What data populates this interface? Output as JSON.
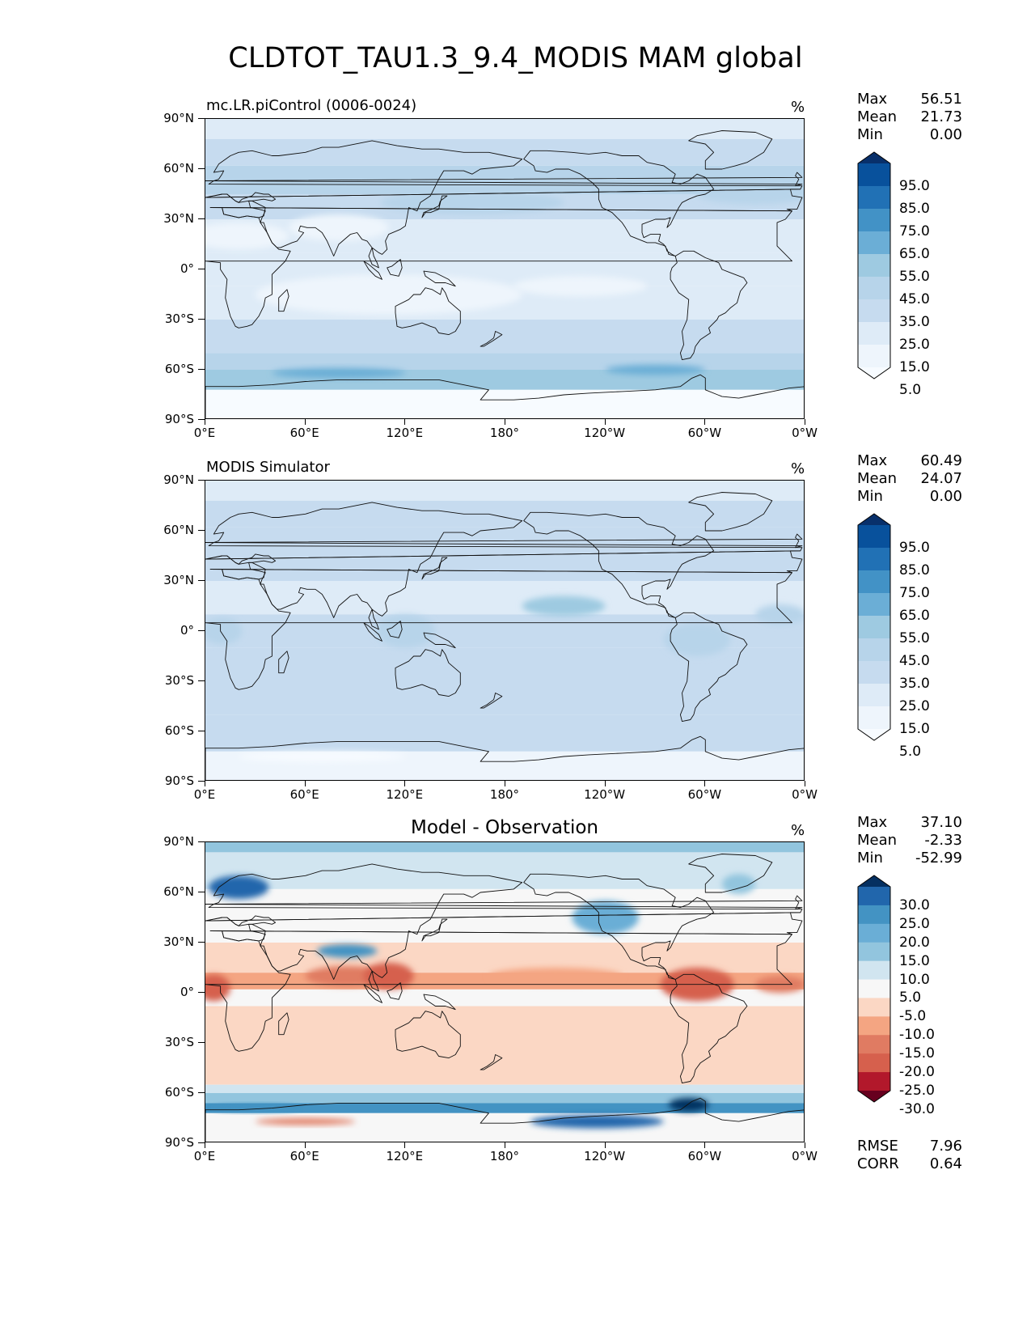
{
  "title": "CLDTOT_TAU1.3_9.4_MODIS MAM global",
  "axes": {
    "yticks": [
      "90°N",
      "60°N",
      "30°N",
      "0°",
      "30°S",
      "60°S",
      "90°S"
    ],
    "xticks": [
      "0°E",
      "60°E",
      "120°E",
      "180°",
      "120°W",
      "60°W",
      "0°W"
    ]
  },
  "panels": [
    {
      "id": "model",
      "subtitle": "mc.LR.piControl (0006-0024)",
      "center_title": "",
      "units": "%",
      "stats": [
        {
          "label": "Max",
          "value": "56.51"
        },
        {
          "label": "Mean",
          "value": "21.73"
        },
        {
          "label": "Min",
          "value": "0.00"
        }
      ],
      "colorbar_labels": [
        "95.0",
        "85.0",
        "75.0",
        "65.0",
        "55.0",
        "45.0",
        "35.0",
        "25.0",
        "15.0",
        "5.0"
      ],
      "colorbar_colors": [
        "#08306b",
        "#08519c",
        "#2171b5",
        "#4292c6",
        "#6baed6",
        "#9ecae1",
        "#b7d4ea",
        "#c6dbef",
        "#deebf7",
        "#eef5fc",
        "#f7fbff"
      ],
      "metrics": []
    },
    {
      "id": "obs",
      "subtitle": "MODIS Simulator",
      "center_title": "",
      "units": "%",
      "stats": [
        {
          "label": "Max",
          "value": "60.49"
        },
        {
          "label": "Mean",
          "value": "24.07"
        },
        {
          "label": "Min",
          "value": "0.00"
        }
      ],
      "colorbar_labels": [
        "95.0",
        "85.0",
        "75.0",
        "65.0",
        "55.0",
        "45.0",
        "35.0",
        "25.0",
        "15.0",
        "5.0"
      ],
      "colorbar_colors": [
        "#08306b",
        "#08519c",
        "#2171b5",
        "#4292c6",
        "#6baed6",
        "#9ecae1",
        "#b7d4ea",
        "#c6dbef",
        "#deebf7",
        "#eef5fc",
        "#f7fbff"
      ],
      "metrics": []
    },
    {
      "id": "diff",
      "subtitle": "",
      "center_title": "Model - Observation",
      "units": "%",
      "stats": [
        {
          "label": "Max",
          "value": "37.10"
        },
        {
          "label": "Mean",
          "value": "-2.33"
        },
        {
          "label": "Min",
          "value": "-52.99"
        }
      ],
      "colorbar_labels": [
        "30.0",
        "25.0",
        "20.0",
        "15.0",
        "10.0",
        "5.0",
        "-5.0",
        "-10.0",
        "-15.0",
        "-20.0",
        "-25.0",
        "-30.0"
      ],
      "colorbar_colors": [
        "#053061",
        "#2166ac",
        "#4393c3",
        "#6aaed6",
        "#92c5de",
        "#d1e5f0",
        "#f7f7f7",
        "#fbd7c4",
        "#f4a582",
        "#e07b62",
        "#d6604d",
        "#b2182b",
        "#67001f"
      ],
      "metrics": [
        {
          "label": "RMSE",
          "value": "7.96"
        },
        {
          "label": "CORR",
          "value": "0.64"
        }
      ]
    }
  ],
  "chart_data": [
    {
      "type": "heatmap",
      "title": "mc.LR.piControl (0006-0024)",
      "units": "%",
      "xlim": [
        0,
        360
      ],
      "ylim": [
        -90,
        90
      ],
      "levels": [
        5,
        15,
        25,
        35,
        45,
        55,
        65,
        75,
        85,
        95
      ],
      "max": 56.51,
      "mean": 21.73,
      "min": 0.0,
      "zonal_bands": [
        {
          "lat": [
            60,
            90
          ],
          "value": 25
        },
        {
          "lat": [
            30,
            60
          ],
          "value": 30
        },
        {
          "lat": [
            0,
            30
          ],
          "value": 18
        },
        {
          "lat": [
            -30,
            0
          ],
          "value": 18
        },
        {
          "lat": [
            -60,
            -30
          ],
          "value": 30
        },
        {
          "lat": [
            -72,
            -60
          ],
          "value": 42
        },
        {
          "lat": [
            -90,
            -72
          ],
          "value": 5
        }
      ]
    },
    {
      "type": "heatmap",
      "title": "MODIS Simulator",
      "units": "%",
      "xlim": [
        0,
        360
      ],
      "ylim": [
        -90,
        90
      ],
      "levels": [
        5,
        15,
        25,
        35,
        45,
        55,
        65,
        75,
        85,
        95
      ],
      "max": 60.49,
      "mean": 24.07,
      "min": 0.0,
      "zonal_bands": [
        {
          "lat": [
            60,
            90
          ],
          "value": 25
        },
        {
          "lat": [
            30,
            60
          ],
          "value": 28
        },
        {
          "lat": [
            0,
            30
          ],
          "value": 22
        },
        {
          "lat": [
            -30,
            0
          ],
          "value": 24
        },
        {
          "lat": [
            -60,
            -30
          ],
          "value": 30
        },
        {
          "lat": [
            -72,
            -60
          ],
          "value": 30
        },
        {
          "lat": [
            -90,
            -72
          ],
          "value": 10
        }
      ]
    },
    {
      "type": "heatmap",
      "title": "Model - Observation",
      "units": "%",
      "xlim": [
        0,
        360
      ],
      "ylim": [
        -90,
        90
      ],
      "levels": [
        -30,
        -25,
        -20,
        -15,
        -10,
        -5,
        5,
        10,
        15,
        20,
        25,
        30
      ],
      "max": 37.1,
      "mean": -2.33,
      "min": -52.99,
      "rmse": 7.96,
      "corr": 0.64,
      "zonal_bands": [
        {
          "lat": [
            60,
            90
          ],
          "value": 8
        },
        {
          "lat": [
            30,
            60
          ],
          "value": 2
        },
        {
          "lat": [
            0,
            30
          ],
          "value": -8
        },
        {
          "lat": [
            -30,
            0
          ],
          "value": -4
        },
        {
          "lat": [
            -60,
            -30
          ],
          "value": -6
        },
        {
          "lat": [
            -72,
            -60
          ],
          "value": 18
        },
        {
          "lat": [
            -90,
            -72
          ],
          "value": -5
        }
      ]
    }
  ]
}
